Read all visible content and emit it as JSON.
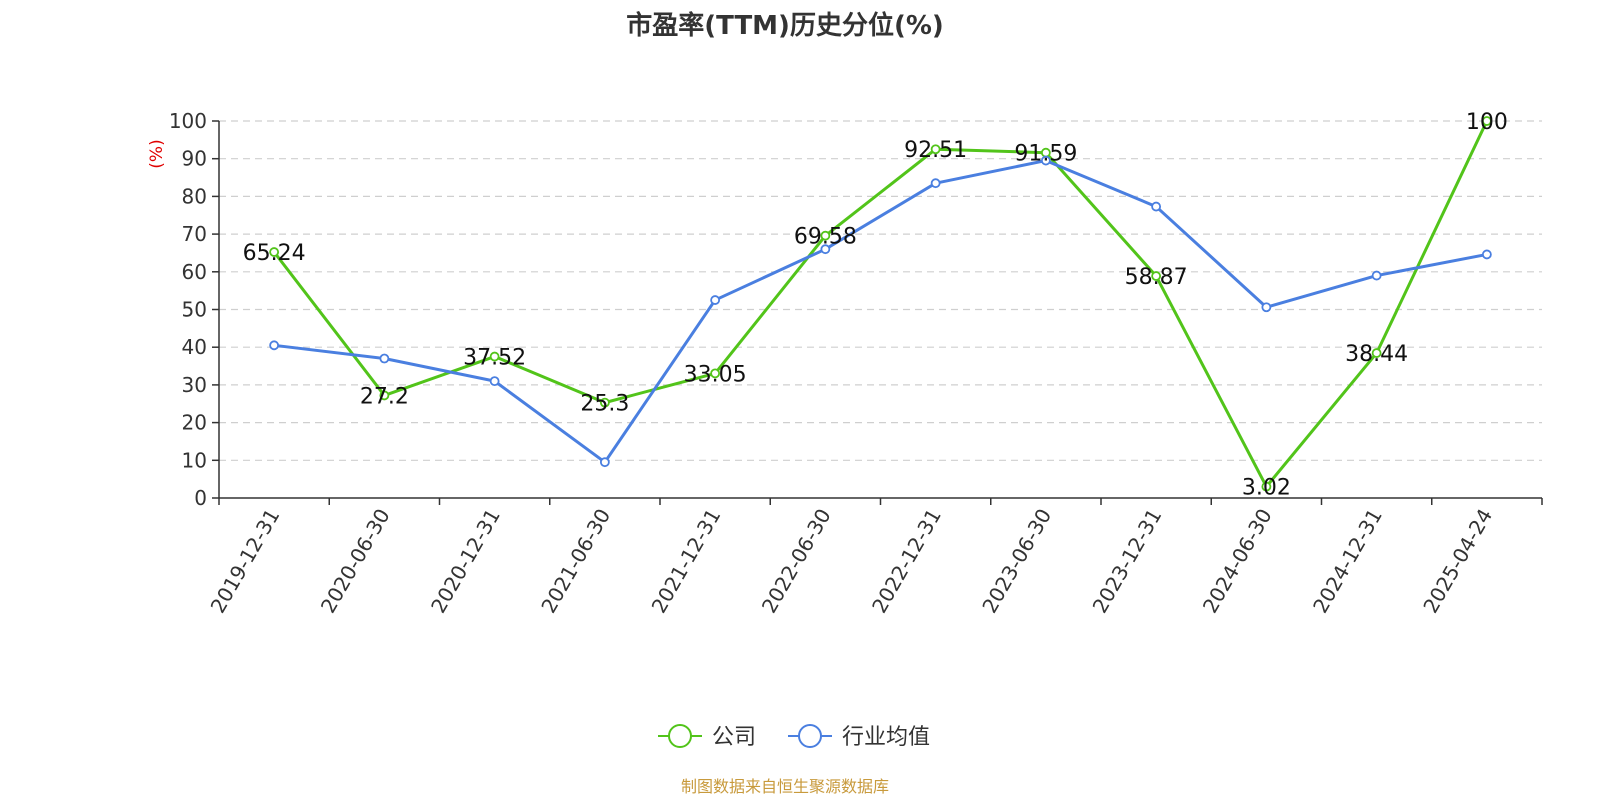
{
  "chart_data": {
    "type": "line",
    "title": "市盈率(TTM)历史分位(%)",
    "ylabel": "(%)",
    "ylim": [
      0,
      100
    ],
    "yticks": [
      "0",
      "10",
      "20",
      "30",
      "40",
      "50",
      "60",
      "70",
      "80",
      "90",
      "100"
    ],
    "grid": true,
    "legend_position": "bottom",
    "categories": [
      "2019-12-31",
      "2020-06-30",
      "2020-12-31",
      "2021-06-30",
      "2021-12-31",
      "2022-06-30",
      "2022-12-31",
      "2023-06-30",
      "2023-12-31",
      "2024-06-30",
      "2024-12-31",
      "2025-04-24"
    ],
    "series": [
      {
        "name": "公司",
        "color": "#52c41a",
        "values": [
          65.24,
          27.2,
          37.52,
          25.3,
          33.05,
          69.58,
          92.51,
          91.59,
          58.87,
          3.02,
          38.44,
          100
        ],
        "labels": [
          "65.24",
          "27.2",
          "37.52",
          "25.3",
          "33.05",
          "69.58",
          "92.51",
          "91.59",
          "58.87",
          "3.02",
          "38.44",
          "100"
        ]
      },
      {
        "name": "行业均值",
        "color": "#4a7fe0",
        "values": [
          40.5,
          37.0,
          31.0,
          9.5,
          52.5,
          66.0,
          83.5,
          89.5,
          77.3,
          50.6,
          59.0,
          64.6
        ]
      }
    ],
    "source": "制图数据来自恒生聚源数据库"
  }
}
